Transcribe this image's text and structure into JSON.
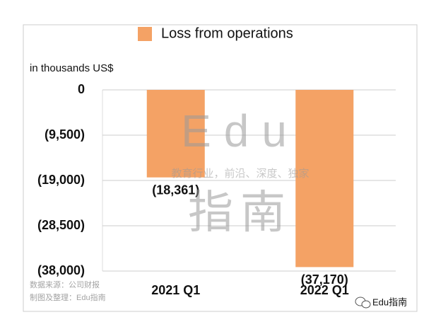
{
  "chart_data": {
    "type": "bar",
    "legend_label": "Loss from operations",
    "y_axis_label": "in thousands US$",
    "categories": [
      "2021 Q1",
      "2022 Q1"
    ],
    "values": [
      -18361,
      -37170
    ],
    "value_labels": [
      "(18,361)",
      "(37,170)"
    ],
    "color": "#f4a265",
    "ylim": [
      -38000,
      0
    ],
    "yticks": [
      0,
      {
        "value": -9500,
        "label": "(9,500)"
      },
      {
        "value": -19000,
        "label": "(19,000)"
      },
      {
        "value": -28500,
        "label": "(28,500)"
      },
      {
        "value": -38000,
        "label": "(38,000)"
      }
    ],
    "grid": true,
    "watermark": [
      "Edu",
      "教育行业，前沿、深度、独家",
      "指南"
    ],
    "source": "数据来源：公司财报",
    "credit": "制图及整理：Edu指南",
    "badge": "Edu指南"
  }
}
